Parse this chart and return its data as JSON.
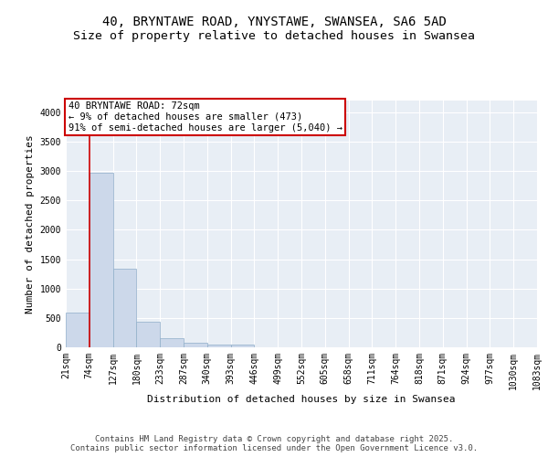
{
  "title_line1": "40, BRYNTAWE ROAD, YNYSTAWE, SWANSEA, SA6 5AD",
  "title_line2": "Size of property relative to detached houses in Swansea",
  "xlabel": "Distribution of detached houses by size in Swansea",
  "ylabel": "Number of detached properties",
  "bar_values": [
    590,
    2970,
    1340,
    430,
    160,
    80,
    45,
    40,
    0,
    0,
    0,
    0,
    0,
    0,
    0,
    0,
    0,
    0,
    0,
    0
  ],
  "bar_labels": [
    "21sqm",
    "74sqm",
    "127sqm",
    "180sqm",
    "233sqm",
    "287sqm",
    "340sqm",
    "393sqm",
    "446sqm",
    "499sqm",
    "552sqm",
    "605sqm",
    "658sqm",
    "711sqm",
    "764sqm",
    "818sqm",
    "871sqm",
    "924sqm",
    "977sqm",
    "1030sqm",
    "1083sqm"
  ],
  "bar_color": "#ccd8ea",
  "bar_edge_color": "#8faec9",
  "annotation_box_text": "40 BRYNTAWE ROAD: 72sqm\n← 9% of detached houses are smaller (473)\n91% of semi-detached houses are larger (5,040) →",
  "annotation_box_color": "#ffffff",
  "annotation_box_edge_color": "#cc0000",
  "vline_x": 1,
  "vline_color": "#cc0000",
  "ylim": [
    0,
    4200
  ],
  "yticks": [
    0,
    500,
    1000,
    1500,
    2000,
    2500,
    3000,
    3500,
    4000
  ],
  "background_color": "#e8eef5",
  "grid_color": "#ffffff",
  "footer_text": "Contains HM Land Registry data © Crown copyright and database right 2025.\nContains public sector information licensed under the Open Government Licence v3.0.",
  "title_fontsize": 10,
  "subtitle_fontsize": 9.5,
  "axis_label_fontsize": 8,
  "tick_fontsize": 7,
  "annotation_fontsize": 7.5,
  "footer_fontsize": 6.5
}
